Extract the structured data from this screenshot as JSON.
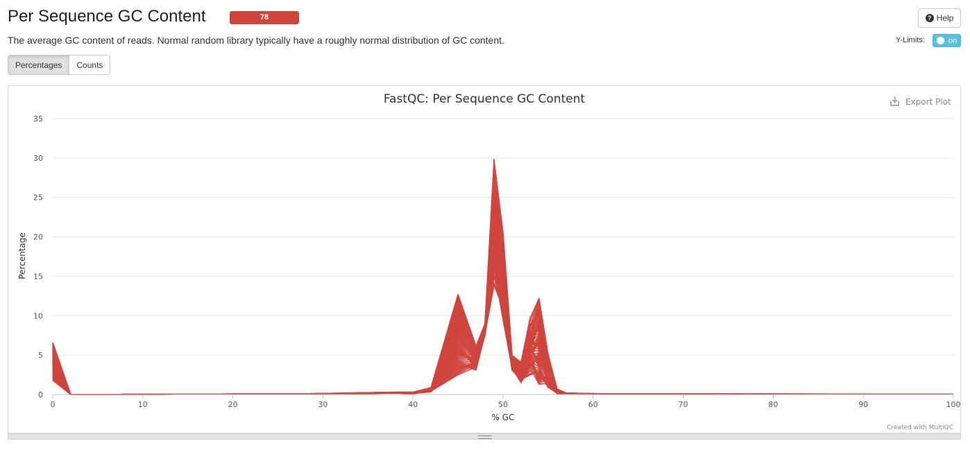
{
  "header": {
    "title": "Per Sequence GC Content",
    "badge": "78",
    "description": "The average GC content of reads. Normal random library typically have a roughly normal distribution of GC content.",
    "help_label": "Help",
    "help_icon": "question-circle-icon",
    "ylimits_label": "Y-Limits:",
    "ylimits_toggle": "on"
  },
  "tabs": [
    {
      "label": "Percentages",
      "active": true
    },
    {
      "label": "Counts",
      "active": false
    }
  ],
  "plot": {
    "export_label": "Export Plot",
    "credit": "Created with MultiQC"
  },
  "colors": {
    "series": "#d0463d",
    "badge": "#d0463d",
    "toggle": "#5bc0de"
  },
  "chart_data": {
    "type": "line",
    "title": "FastQC: Per Sequence GC Content",
    "xlabel": "% GC",
    "ylabel": "Percentage",
    "xlim": [
      0,
      100
    ],
    "ylim": [
      0,
      35
    ],
    "xticks": [
      0,
      10,
      20,
      30,
      40,
      50,
      60,
      70,
      80,
      90,
      100
    ],
    "yticks": [
      0,
      5,
      10,
      15,
      20,
      25,
      30,
      35
    ],
    "grid": true,
    "legend": "none",
    "series_count": 78,
    "envelope": {
      "x": [
        0,
        2,
        28,
        38,
        40,
        42,
        45,
        47,
        48,
        49,
        50,
        51,
        52,
        53,
        54,
        55,
        56,
        57,
        61,
        100
      ],
      "y_max": [
        6.6,
        0,
        0.1,
        0.3,
        0.3,
        0.9,
        12.7,
        6.2,
        9.0,
        30.1,
        20.5,
        5.0,
        4.1,
        9.8,
        12.2,
        5.2,
        0.7,
        0.2,
        0.1,
        0.05
      ],
      "y_min": [
        1.8,
        0,
        0.05,
        0.15,
        0.1,
        0.3,
        2.5,
        2.8,
        7.5,
        12.3,
        9.5,
        2.9,
        1.5,
        1.8,
        1.3,
        0.5,
        0.1,
        0.05,
        0.02,
        0.02
      ]
    }
  }
}
